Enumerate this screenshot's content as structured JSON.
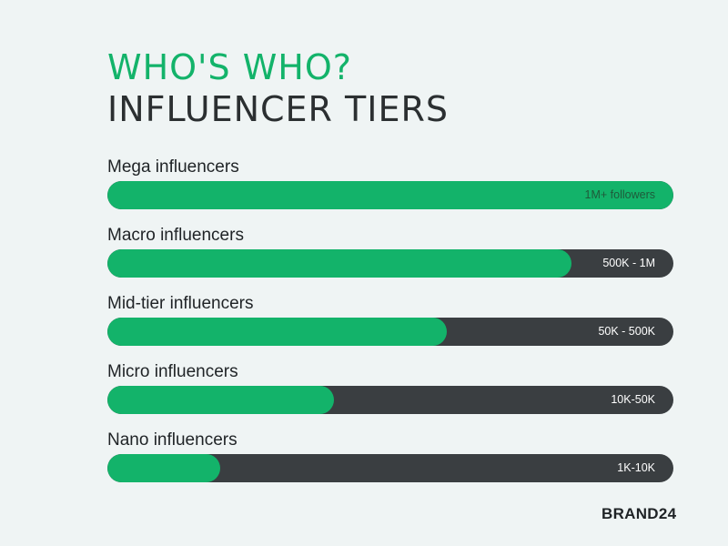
{
  "header": {
    "title_line_1": "WHO'S WHO?",
    "title_line_2": "INFLUENCER TIERS"
  },
  "colors": {
    "background": "#eff4f4",
    "accent_green": "#13b36a",
    "track_dark": "#3a3e41",
    "text_dark": "#1f2326"
  },
  "chart_data": {
    "type": "bar",
    "orientation": "horizontal",
    "categories": [
      "Mega influencers",
      "Macro influencers",
      "Mid-tier influencers",
      "Micro influencers",
      "Nano influencers"
    ],
    "range_labels": [
      "1M+ followers",
      "500K - 1M",
      "50K - 500K",
      "10K-50K",
      "1K-10K"
    ],
    "fill_fraction": [
      1.0,
      0.82,
      0.6,
      0.4,
      0.2
    ]
  },
  "footer": {
    "brand": "BRAND24"
  }
}
